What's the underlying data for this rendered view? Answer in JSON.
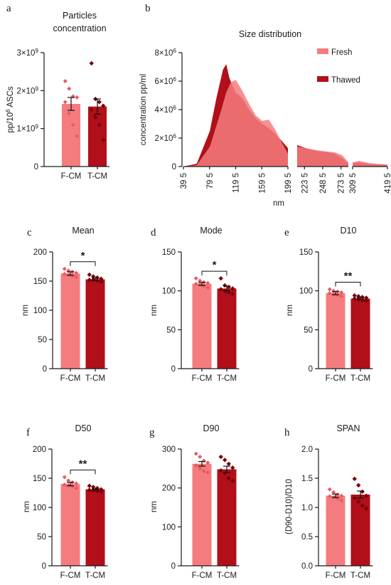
{
  "colors": {
    "fresh": "#f47c7f",
    "fresh_dark": "#e85c63",
    "thawed": "#b10f1a",
    "thawed_dark": "#7a0009"
  },
  "chart_data": [
    {
      "id": "a",
      "panel_label": "a",
      "type": "bar",
      "title": "Particles\nconcentration",
      "ylabel": "pp/10^6 ASCs",
      "categories": [
        "F-CM",
        "T-CM"
      ],
      "values": [
        1650000000,
        1580000000
      ],
      "errors": [
        170000000,
        200000000
      ],
      "ylim": [
        0,
        3000000000
      ],
      "yticks": [
        {
          "v": 0,
          "t": "0"
        },
        {
          "v": 1000000000,
          "t": "1×10^9"
        },
        {
          "v": 2000000000,
          "t": "2×10^9"
        },
        {
          "v": 3000000000,
          "t": "3×10^9"
        }
      ],
      "points": [
        [
          2250000000,
          2050000000,
          1850000000,
          1820000000,
          1700000000,
          1400000000,
          1100000000,
          800000000
        ],
        [
          2720000000,
          1780000000,
          1700000000,
          1600000000,
          1500000000,
          1300000000,
          1100000000,
          700000000
        ]
      ],
      "significance": ""
    },
    {
      "id": "b",
      "panel_label": "b",
      "type": "area",
      "title": "Size distribution",
      "xlabel": "nm",
      "ylabel": "concentration pp/ml",
      "ylim": [
        0,
        8000000
      ],
      "yticks": [
        {
          "v": 0,
          "t": "0"
        },
        {
          "v": 2000000,
          "t": "2×10^6"
        },
        {
          "v": 4000000,
          "t": "4×10^6"
        },
        {
          "v": 6000000,
          "t": "6×10^6"
        },
        {
          "v": 8000000,
          "t": "8×10^6"
        }
      ],
      "segments": [
        {
          "xlim": [
            39.5,
            199.5
          ],
          "xticks": [
            39.5,
            79.5,
            119.5,
            159.5,
            199.5
          ]
        },
        {
          "xlim": [
            213.5,
            283.5
          ],
          "xticks": [
            223.5,
            248.5,
            273.5
          ]
        },
        {
          "xlim": [
            309.5,
            419.5
          ],
          "xticks": [
            309.5,
            419.5
          ]
        }
      ],
      "tick_labels": [
        "39 5",
        "79 5",
        "119 5",
        "159 5",
        "199 5",
        "223 5",
        "248 5",
        "273 5",
        "309 5",
        "419 5"
      ],
      "legend": [
        "Fresh",
        "Thawed"
      ],
      "series": [
        {
          "name": "Fresh",
          "x": [
            39.5,
            60,
            80,
            95,
            105,
            112,
            119.5,
            130,
            140,
            150,
            160,
            170,
            180,
            190,
            199.5,
            213.5,
            225,
            240,
            255,
            265,
            275,
            283.5,
            309.5,
            330,
            360,
            390,
            419.5
          ],
          "y": [
            0,
            100000,
            1400000,
            3600000,
            5200000,
            5900000,
            6100000,
            5300000,
            4400000,
            3600000,
            3200000,
            3300000,
            2600000,
            1700000,
            900000,
            1400000,
            1300000,
            1150000,
            1050000,
            1000000,
            800000,
            300000,
            300000,
            400000,
            250000,
            180000,
            150000
          ]
        },
        {
          "name": "Thawed",
          "x": [
            39.5,
            60,
            80,
            90,
            100,
            105,
            110,
            119.5,
            130,
            140,
            150,
            160,
            170,
            180,
            190,
            199.5,
            213.5,
            225,
            240,
            255,
            265,
            275,
            283.5,
            309.5,
            330,
            360,
            390,
            419.5
          ],
          "y": [
            0,
            200000,
            2500000,
            4800000,
            6800000,
            7200000,
            6200000,
            5200000,
            4800000,
            4000000,
            3400000,
            3000000,
            2700000,
            2300000,
            1800000,
            1300000,
            1500000,
            1300000,
            1100000,
            1000000,
            900000,
            600000,
            200000,
            200000,
            300000,
            180000,
            150000,
            120000
          ]
        }
      ]
    },
    {
      "id": "c",
      "panel_label": "c",
      "type": "bar",
      "title": "Mean",
      "ylabel": "nm",
      "categories": [
        "F-CM",
        "T-CM"
      ],
      "values": [
        163,
        153
      ],
      "errors": [
        3,
        2
      ],
      "ylim": [
        0,
        200
      ],
      "yticks": [
        {
          "v": 0,
          "t": "0"
        },
        {
          "v": 50,
          "t": "50"
        },
        {
          "v": 100,
          "t": "100"
        },
        {
          "v": 150,
          "t": "150"
        },
        {
          "v": 200,
          "t": "200"
        }
      ],
      "points": [
        [
          171,
          168,
          166,
          164,
          162,
          161,
          159,
          157
        ],
        [
          161,
          158,
          156,
          154,
          152,
          152,
          151,
          149
        ]
      ],
      "significance": "*"
    },
    {
      "id": "d",
      "panel_label": "d",
      "type": "bar",
      "title": "Mode",
      "ylabel": "nm",
      "categories": [
        "F-CM",
        "T-CM"
      ],
      "values": [
        109,
        103
      ],
      "errors": [
        2,
        3
      ],
      "ylim": [
        0,
        150
      ],
      "yticks": [
        {
          "v": 0,
          "t": "0"
        },
        {
          "v": 50,
          "t": "50"
        },
        {
          "v": 100,
          "t": "100"
        },
        {
          "v": 150,
          "t": "150"
        }
      ],
      "points": [
        [
          116,
          113,
          111,
          110,
          109,
          108,
          106,
          104
        ],
        [
          116,
          107,
          105,
          103,
          102,
          100,
          98,
          96
        ]
      ],
      "significance": "*"
    },
    {
      "id": "e",
      "panel_label": "e",
      "type": "bar",
      "title": "D10",
      "ylabel": "nm",
      "categories": [
        "F-CM",
        "T-CM"
      ],
      "values": [
        97,
        90
      ],
      "errors": [
        2,
        1
      ],
      "ylim": [
        0,
        150
      ],
      "yticks": [
        {
          "v": 0,
          "t": "0"
        },
        {
          "v": 50,
          "t": "50"
        },
        {
          "v": 100,
          "t": "100"
        },
        {
          "v": 150,
          "t": "150"
        }
      ],
      "points": [
        [
          102,
          100,
          99,
          98,
          97,
          96,
          95,
          93
        ],
        [
          94,
          93,
          92,
          91,
          90,
          89,
          88,
          87
        ]
      ],
      "significance": "**"
    },
    {
      "id": "f",
      "panel_label": "f",
      "type": "bar",
      "title": "D50",
      "ylabel": "nm",
      "categories": [
        "F-CM",
        "T-CM"
      ],
      "values": [
        140,
        131
      ],
      "errors": [
        3,
        1
      ],
      "ylim": [
        0,
        200
      ],
      "yticks": [
        {
          "v": 0,
          "t": "0"
        },
        {
          "v": 50,
          "t": "50"
        },
        {
          "v": 100,
          "t": "100"
        },
        {
          "v": 150,
          "t": "150"
        },
        {
          "v": 200,
          "t": "200"
        }
      ],
      "points": [
        [
          152,
          146,
          143,
          141,
          139,
          138,
          136,
          133
        ],
        [
          137,
          135,
          133,
          131,
          130,
          129,
          128,
          127
        ]
      ],
      "significance": "**"
    },
    {
      "id": "g",
      "panel_label": "g",
      "type": "bar",
      "title": "D90",
      "ylabel": "nm",
      "categories": [
        "F-CM",
        "T-CM"
      ],
      "values": [
        262,
        248
      ],
      "errors": [
        6,
        8
      ],
      "ylim": [
        0,
        300
      ],
      "yticks": [
        {
          "v": 0,
          "t": "0"
        },
        {
          "v": 100,
          "t": "100"
        },
        {
          "v": 200,
          "t": "200"
        },
        {
          "v": 300,
          "t": "300"
        }
      ],
      "points": [
        [
          288,
          280,
          270,
          265,
          258,
          250,
          243,
          240
        ],
        [
          280,
          272,
          262,
          252,
          245,
          238,
          225,
          218
        ]
      ],
      "significance": ""
    },
    {
      "id": "h",
      "panel_label": "h",
      "type": "bar",
      "title": "SPAN",
      "ylabel": "(D90-D10)/D10",
      "categories": [
        "F-CM",
        "T-CM"
      ],
      "values": [
        1.2,
        1.22
      ],
      "errors": [
        0.03,
        0.06
      ],
      "ylim": [
        0,
        2.0
      ],
      "yticks": [
        {
          "v": 0,
          "t": "0.0"
        },
        {
          "v": 0.5,
          "t": "0.5"
        },
        {
          "v": 1.0,
          "t": "1.0"
        },
        {
          "v": 1.5,
          "t": "1.5"
        },
        {
          "v": 2.0,
          "t": "2.0"
        }
      ],
      "points": [
        [
          1.31,
          1.26,
          1.22,
          1.2,
          1.19,
          1.17,
          1.15,
          1.12
        ],
        [
          1.49,
          1.38,
          1.27,
          1.2,
          1.16,
          1.1,
          1.03,
          0.98
        ]
      ],
      "significance": ""
    }
  ]
}
